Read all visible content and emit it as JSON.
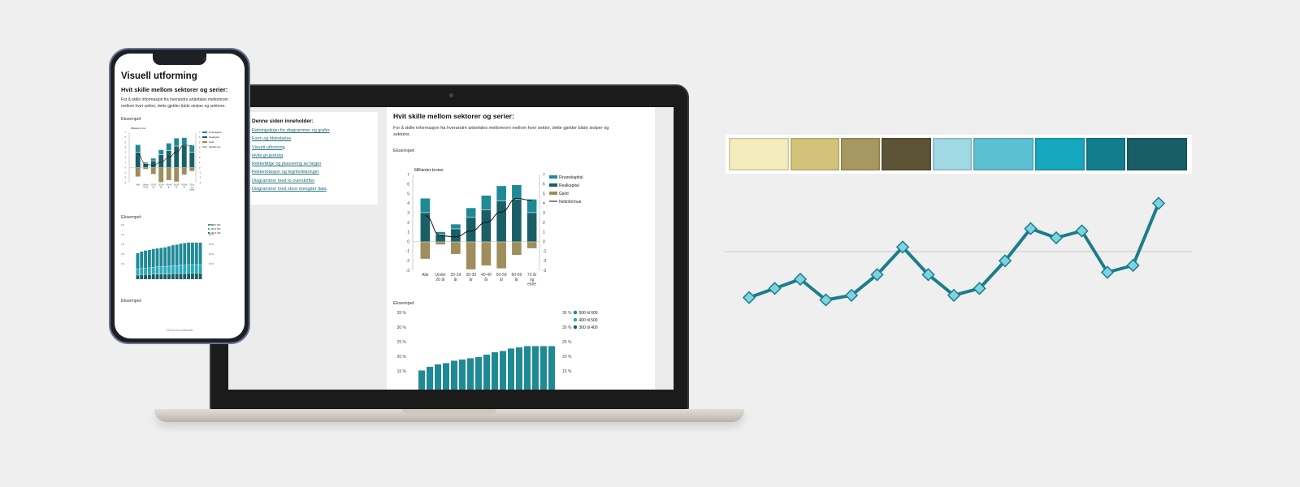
{
  "laptop": {
    "toc": {
      "title": "Denne siden inneholder:",
      "links": [
        "Retningslinjer for diagrammer og grafer",
        "Form og tilstrebelse",
        "Visuell utforming",
        "Hvite grupsluda",
        "Rekkefølge og plassering av farger",
        "Rekkerotasjon og tegnforklaringer",
        "Diagrammer med to overskrifter",
        "Diagrammer med store mengder data"
      ]
    },
    "article": {
      "heading": "Hvit skille mellom sektorer og serier:",
      "body": "For å skille informasjon fra hverandre anbefales mellomrom mellom hver sektor, dette gjelder både stolper og sektorer.",
      "example1": "Eksempel:",
      "example2": "Eksempel:"
    }
  },
  "phone": {
    "title": "Visuell utforming",
    "heading": "Hvit skille mellom sektorer og serier:",
    "body": "For å skille informasjon fra hverandre anbefales mellomrom mellom hver sektor, dette gjelder både stolper og sektorer.",
    "example1": "Eksempel:",
    "example2": "Eksempel:",
    "example3": "Eksempel:",
    "footer": "Innhold fra nettstedet"
  },
  "colors": {
    "teal_dark": "#1a5f66",
    "teal": "#1f8a96",
    "teal_light": "#2aa9bd",
    "olive": "#9e8e5c",
    "line_accent": "#1b7d8b",
    "marker_fill": "#7dd3df"
  },
  "palette_colors": [
    "#f4ecbd",
    "#d3c37a",
    "#a69860",
    "#5d5335",
    "#a0d8e3",
    "#5cc0d3",
    "#14a7bd",
    "#127e8d",
    "#195e66"
  ],
  "chart_data": [
    {
      "type": "bar",
      "ylabel": "Milliarder kroner",
      "categories": [
        "Alle",
        "Under 20 år",
        "20-29 år",
        "30-39 år",
        "40-49 år",
        "50-59 år",
        "60-69 år",
        "70 år og eldre"
      ],
      "category_lines": [
        [
          "Alle"
        ],
        [
          "Under",
          "20 år"
        ],
        [
          "20-29",
          "år"
        ],
        [
          "30-39",
          "år"
        ],
        [
          "40-49",
          "år"
        ],
        [
          "50-59",
          "år"
        ],
        [
          "60-69",
          "år"
        ],
        [
          "70 år",
          "og",
          "eldre"
        ]
      ],
      "series": [
        {
          "name": "Finanskapital",
          "type": "bar",
          "values": [
            1.5,
            0.3,
            0.5,
            1.0,
            1.5,
            1.6,
            1.5,
            1.4
          ]
        },
        {
          "name": "Realkapital",
          "type": "bar",
          "values": [
            3.0,
            0.7,
            1.3,
            2.5,
            3.3,
            4.2,
            4.4,
            3.0
          ]
        },
        {
          "name": "Gjeld",
          "type": "bar",
          "values": [
            -1.8,
            -0.3,
            -1.3,
            -2.9,
            -2.5,
            -2.8,
            -1.4,
            -0.7
          ]
        },
        {
          "name": "Nettoformue",
          "type": "line",
          "values": [
            2.7,
            0.6,
            0.5,
            1.1,
            2.0,
            3.1,
            4.5,
            4.3
          ]
        }
      ],
      "y_ticks": [
        7,
        6,
        5,
        4,
        3,
        2,
        1,
        0,
        -1,
        -2,
        -3
      ],
      "ylim": [
        -3,
        7
      ],
      "legend": "right"
    },
    {
      "type": "bar",
      "stacked": true,
      "series": [
        {
          "name": "500 til 600",
          "values": [
            15,
            16,
            17,
            17,
            17.5,
            17.5,
            18,
            18.5,
            19,
            19.5,
            20,
            20.5,
            21,
            21,
            21,
            21,
            21
          ]
        },
        {
          "name": "400 til 500",
          "values": [
            6,
            6,
            6,
            6.5,
            6.5,
            7,
            7,
            7,
            7.5,
            7.5,
            7.5,
            8,
            8,
            8,
            8,
            8,
            8
          ]
        },
        {
          "name": "300 til 400",
          "values": [
            4,
            4.5,
            4.5,
            4.5,
            5,
            5,
            5,
            5,
            5,
            5.5,
            5.5,
            5.5,
            5.5,
            6,
            6,
            6,
            6
          ]
        }
      ],
      "y_ticks": [
        "35 %",
        "30 %",
        "25 %",
        "20 %",
        "15 %"
      ],
      "legend": "right"
    },
    {
      "type": "line",
      "values": [
        1.0,
        1.4,
        1.8,
        0.9,
        1.1,
        2.0,
        3.2,
        2.0,
        1.1,
        1.4,
        2.6,
        4.0,
        3.6,
        3.9,
        2.1,
        2.4,
        5.1
      ],
      "reference_line": 3.0,
      "ylim": [
        0,
        6
      ]
    }
  ]
}
